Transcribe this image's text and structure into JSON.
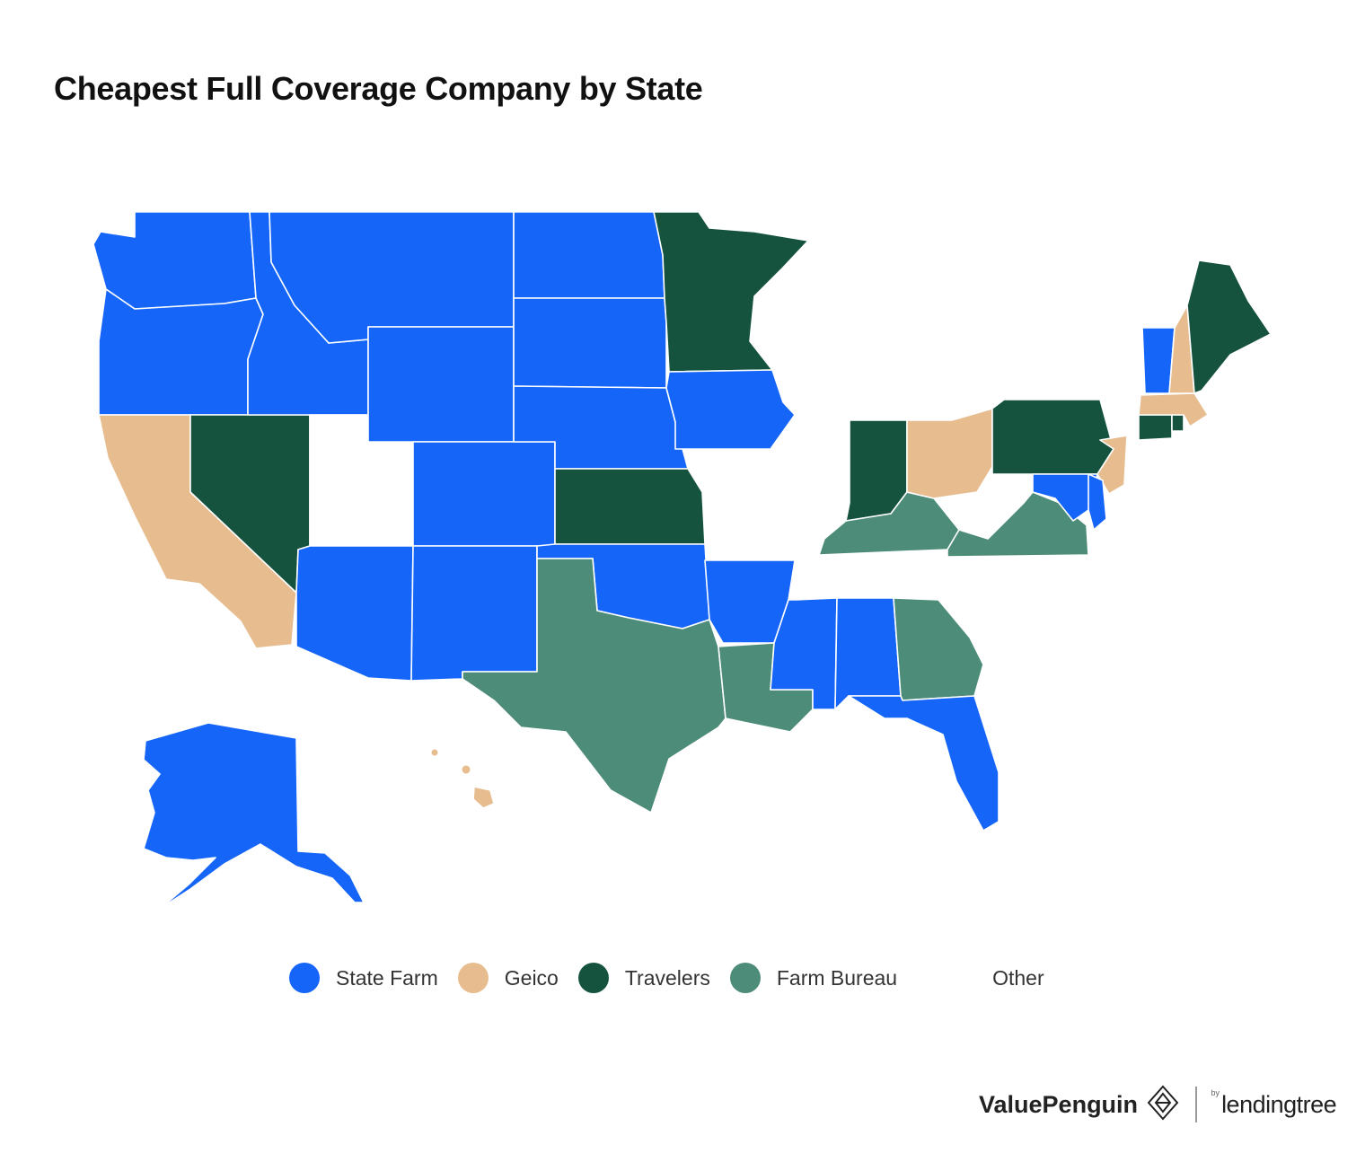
{
  "title": "Cheapest Full Coverage Company by State",
  "colors": {
    "state_farm": "#1565f8",
    "geico": "#e7bd90",
    "travelers": "#16533f",
    "farm_bureau": "#4c8c78",
    "other": "#ffffff"
  },
  "legend": [
    {
      "label": "State Farm",
      "key": "state_farm"
    },
    {
      "label": "Geico",
      "key": "geico"
    },
    {
      "label": "Travelers",
      "key": "travelers"
    },
    {
      "label": "Farm Bureau",
      "key": "farm_bureau"
    },
    {
      "label": "Other",
      "key": "other"
    }
  ],
  "states": {
    "WA": "state_farm",
    "OR": "state_farm",
    "ID": "state_farm",
    "MT": "state_farm",
    "WY": "state_farm",
    "ND": "state_farm",
    "SD": "state_farm",
    "NE": "state_farm",
    "CO": "state_farm",
    "AZ": "state_farm",
    "NM": "state_farm",
    "OK": "state_farm",
    "AR": "state_farm",
    "IA": "state_farm",
    "MS": "state_farm",
    "AL": "state_farm",
    "FL": "state_farm",
    "MD": "state_farm",
    "DE": "state_farm",
    "VT": "state_farm",
    "AK": "state_farm",
    "CA": "geico",
    "OH": "geico",
    "NJ": "geico",
    "MA": "geico",
    "NH": "geico",
    "HI": "geico",
    "NV": "travelers",
    "MN": "travelers",
    "KS": "travelers",
    "IN": "travelers",
    "PA": "travelers",
    "ME": "travelers",
    "CT": "travelers",
    "RI": "travelers",
    "TX": "farm_bureau",
    "LA": "farm_bureau",
    "GA": "farm_bureau",
    "KY": "farm_bureau",
    "VA": "farm_bureau",
    "UT": "other",
    "WV": "other"
  },
  "brand": {
    "valuepenguin": "ValuePenguin",
    "by": "by",
    "lendingtree": "lendingtree"
  }
}
